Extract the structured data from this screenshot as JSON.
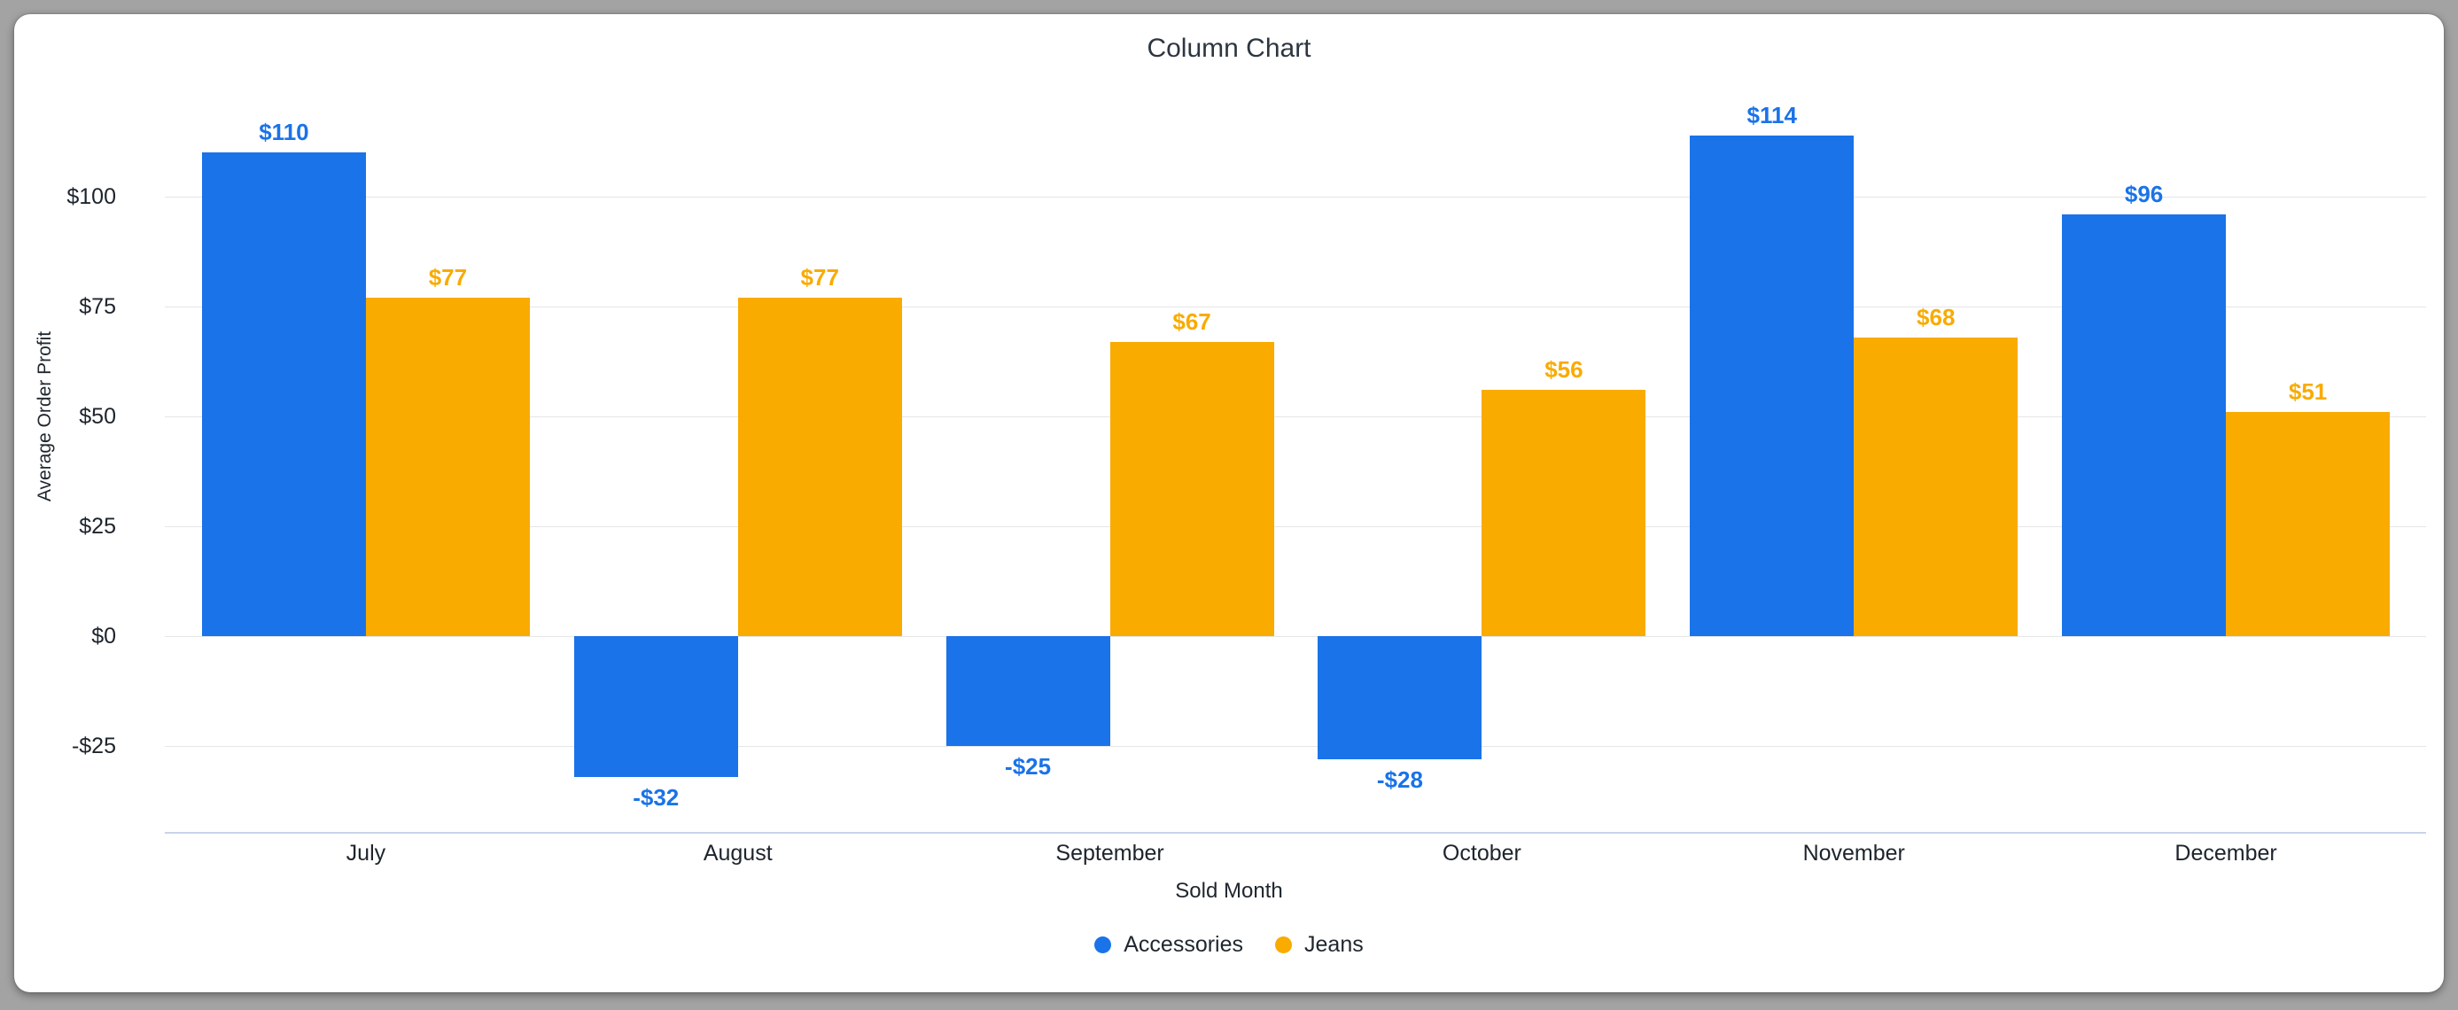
{
  "colors": {
    "page_background": "#a3a3a3",
    "card_background": "#ffffff",
    "grid": "#e6e6e6",
    "zero_axis_baseline": "#c9d3ea",
    "axis_text": "#1d242c",
    "title_text": "#2d3640"
  },
  "chart_data": {
    "type": "bar",
    "title": "Column Chart",
    "xlabel": "Sold Month",
    "ylabel": "Average Order Profit",
    "categories": [
      "July",
      "August",
      "September",
      "October",
      "November",
      "December"
    ],
    "series": [
      {
        "name": "Accessories",
        "color": "#1A73E8",
        "values": [
          110,
          -32,
          -25,
          -28,
          114,
          96
        ],
        "data_labels": [
          "$110",
          "-$32",
          "-$25",
          "-$28",
          "$114",
          "$96"
        ]
      },
      {
        "name": "Jeans",
        "color": "#F9AB00",
        "values": [
          77,
          77,
          67,
          56,
          68,
          51
        ],
        "data_labels": [
          "$77",
          "$77",
          "$67",
          "$56",
          "$68",
          "$51"
        ]
      }
    ],
    "y_ticks": [
      {
        "value": 100,
        "label": "$100"
      },
      {
        "value": 75,
        "label": "$75"
      },
      {
        "value": 50,
        "label": "$50"
      },
      {
        "value": 25,
        "label": "$25"
      },
      {
        "value": 0,
        "label": "$0"
      },
      {
        "value": -25,
        "label": "-$25"
      }
    ],
    "ylim": [
      -45,
      116
    ],
    "grid": true,
    "legend_position": "bottom"
  }
}
